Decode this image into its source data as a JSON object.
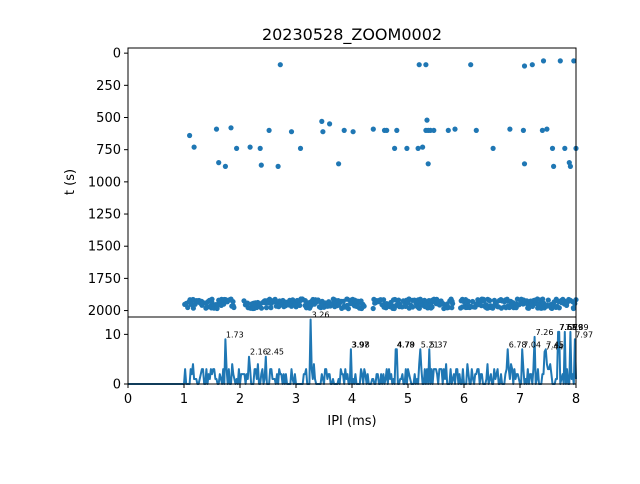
{
  "colors": {
    "series": "#1f77b4",
    "axes": "#000000",
    "background": "#ffffff"
  },
  "chart_data": [
    {
      "type": "scatter",
      "title": "20230528_ZOOM0002",
      "xlabel": "",
      "ylabel": "t (s)",
      "xlim": [
        0,
        8
      ],
      "ylim": [
        2050,
        -40
      ],
      "y_inverted": true,
      "grid": false,
      "y_ticks": [
        "0",
        "250",
        "500",
        "750",
        "1000",
        "1250",
        "1500",
        "1750",
        "2000"
      ],
      "points": [
        [
          2.72,
          90
        ],
        [
          5.2,
          90
        ],
        [
          5.32,
          90
        ],
        [
          6.12,
          90
        ],
        [
          7.08,
          100
        ],
        [
          7.22,
          90
        ],
        [
          7.42,
          60
        ],
        [
          7.72,
          60
        ],
        [
          7.96,
          60
        ],
        [
          1.1,
          640
        ],
        [
          1.18,
          730
        ],
        [
          1.58,
          590
        ],
        [
          1.62,
          850
        ],
        [
          1.74,
          880
        ],
        [
          1.84,
          580
        ],
        [
          1.94,
          740
        ],
        [
          2.18,
          730
        ],
        [
          2.36,
          740
        ],
        [
          2.38,
          870
        ],
        [
          2.52,
          600
        ],
        [
          2.68,
          880
        ],
        [
          2.92,
          610
        ],
        [
          3.08,
          740
        ],
        [
          3.46,
          530
        ],
        [
          3.48,
          610
        ],
        [
          3.6,
          550
        ],
        [
          3.76,
          860
        ],
        [
          3.86,
          600
        ],
        [
          4.02,
          610
        ],
        [
          4.38,
          590
        ],
        [
          4.58,
          600
        ],
        [
          4.62,
          600
        ],
        [
          4.76,
          740
        ],
        [
          4.8,
          600
        ],
        [
          4.98,
          740
        ],
        [
          5.18,
          740
        ],
        [
          5.26,
          730
        ],
        [
          5.32,
          600
        ],
        [
          5.34,
          520
        ],
        [
          5.36,
          600
        ],
        [
          5.36,
          860
        ],
        [
          5.4,
          600
        ],
        [
          5.46,
          600
        ],
        [
          5.72,
          600
        ],
        [
          5.84,
          590
        ],
        [
          6.22,
          600
        ],
        [
          6.52,
          740
        ],
        [
          6.82,
          590
        ],
        [
          7.06,
          600
        ],
        [
          7.08,
          860
        ],
        [
          7.4,
          600
        ],
        [
          7.48,
          590
        ],
        [
          7.58,
          740
        ],
        [
          7.6,
          880
        ],
        [
          7.8,
          740
        ],
        [
          7.88,
          850
        ],
        [
          7.9,
          880
        ],
        [
          8.0,
          740
        ]
      ],
      "dense_band": {
        "t_min": 1910,
        "t_max": 1985,
        "x_start": 1.02,
        "x_end": 8.0,
        "gaps": [
          [
            1.92,
            2.06
          ],
          [
            4.22,
            4.38
          ],
          [
            5.8,
            5.94
          ]
        ]
      }
    },
    {
      "type": "line",
      "xlabel": "IPI (ms)",
      "ylabel": "",
      "xlim": [
        0,
        8
      ],
      "ylim": [
        0,
        13.5
      ],
      "grid": false,
      "x_ticks": [
        "0",
        "1",
        "2",
        "3",
        "4",
        "5",
        "6",
        "7",
        "8"
      ],
      "y_ticks": [
        "0",
        "10"
      ],
      "peaks": [
        {
          "x": 1.73,
          "y": 9,
          "label": "1.73"
        },
        {
          "x": 2.16,
          "y": 5.5,
          "label": "2.16"
        },
        {
          "x": 2.45,
          "y": 5.5,
          "label": "2.45"
        },
        {
          "x": 3.26,
          "y": 13,
          "label": "3.26"
        },
        {
          "x": 3.97,
          "y": 7,
          "label": "3.97"
        },
        {
          "x": 3.98,
          "y": 7,
          "label": "3.98"
        },
        {
          "x": 4.78,
          "y": 7,
          "label": "4.78"
        },
        {
          "x": 4.79,
          "y": 7,
          "label": "4.79"
        },
        {
          "x": 5.21,
          "y": 7,
          "label": "5.21"
        },
        {
          "x": 5.37,
          "y": 7,
          "label": "5.37"
        },
        {
          "x": 6.78,
          "y": 7,
          "label": "6.78"
        },
        {
          "x": 7.04,
          "y": 7,
          "label": "7.04"
        },
        {
          "x": 7.26,
          "y": 9.5,
          "label": "7.26"
        },
        {
          "x": 7.44,
          "y": 6.5,
          "label": "7.44"
        },
        {
          "x": 7.45,
          "y": 7,
          "label": "7.45"
        },
        {
          "x": 7.68,
          "y": 10.5,
          "label": "7.68"
        },
        {
          "x": 7.69,
          "y": 10.5,
          "label": "7.69"
        },
        {
          "x": 7.79,
          "y": 10.5,
          "label": "7.79"
        },
        {
          "x": 7.89,
          "y": 10.5,
          "label": "7.89"
        },
        {
          "x": 7.97,
          "y": 9,
          "label": "7.97"
        }
      ]
    }
  ]
}
